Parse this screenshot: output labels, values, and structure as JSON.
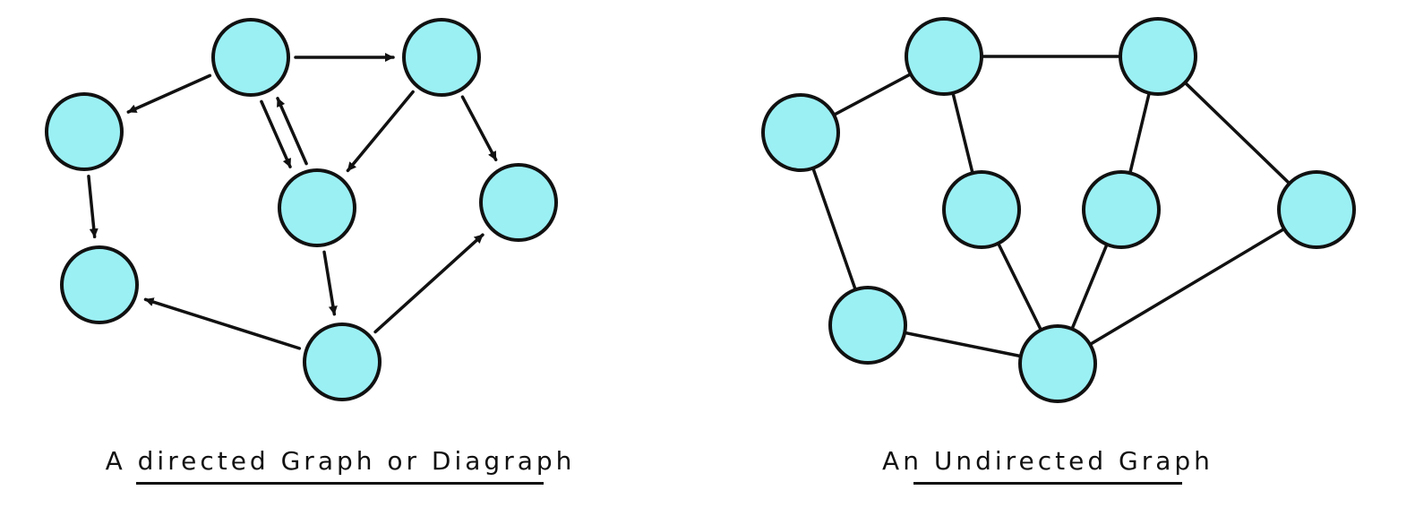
{
  "colors": {
    "node_fill": "#9bf0f4",
    "stroke": "#111111",
    "background": "#ffffff"
  },
  "directed_graph": {
    "caption": "A directed Graph or Diagraph",
    "nodes": [
      "d1",
      "d2",
      "d3",
      "d4",
      "d5",
      "d6",
      "d7",
      "d8"
    ],
    "edges": [
      {
        "from": "d1",
        "to": "d2"
      },
      {
        "from": "d1",
        "to": "d3"
      },
      {
        "from": "d1",
        "to": "d4"
      },
      {
        "from": "d4",
        "to": "d1"
      },
      {
        "from": "d2",
        "to": "d4"
      },
      {
        "from": "d2",
        "to": "d5"
      },
      {
        "from": "d3",
        "to": "d6"
      },
      {
        "from": "d4",
        "to": "d7"
      },
      {
        "from": "d7",
        "to": "d6"
      },
      {
        "from": "d7",
        "to": "d5"
      }
    ]
  },
  "undirected_graph": {
    "caption": "An Undirected Graph",
    "nodes": [
      "u1",
      "u2",
      "u3",
      "u4",
      "u5",
      "u6",
      "u7",
      "u8"
    ],
    "edges": [
      {
        "from": "u1",
        "to": "u2"
      },
      {
        "from": "u1",
        "to": "u3"
      },
      {
        "from": "u1",
        "to": "u4"
      },
      {
        "from": "u2",
        "to": "u5"
      },
      {
        "from": "u2",
        "to": "u6"
      },
      {
        "from": "u3",
        "to": "u7"
      },
      {
        "from": "u4",
        "to": "u8"
      },
      {
        "from": "u6",
        "to": "u8"
      },
      {
        "from": "u7",
        "to": "u8"
      },
      {
        "from": "u5",
        "to": "u8"
      }
    ]
  }
}
